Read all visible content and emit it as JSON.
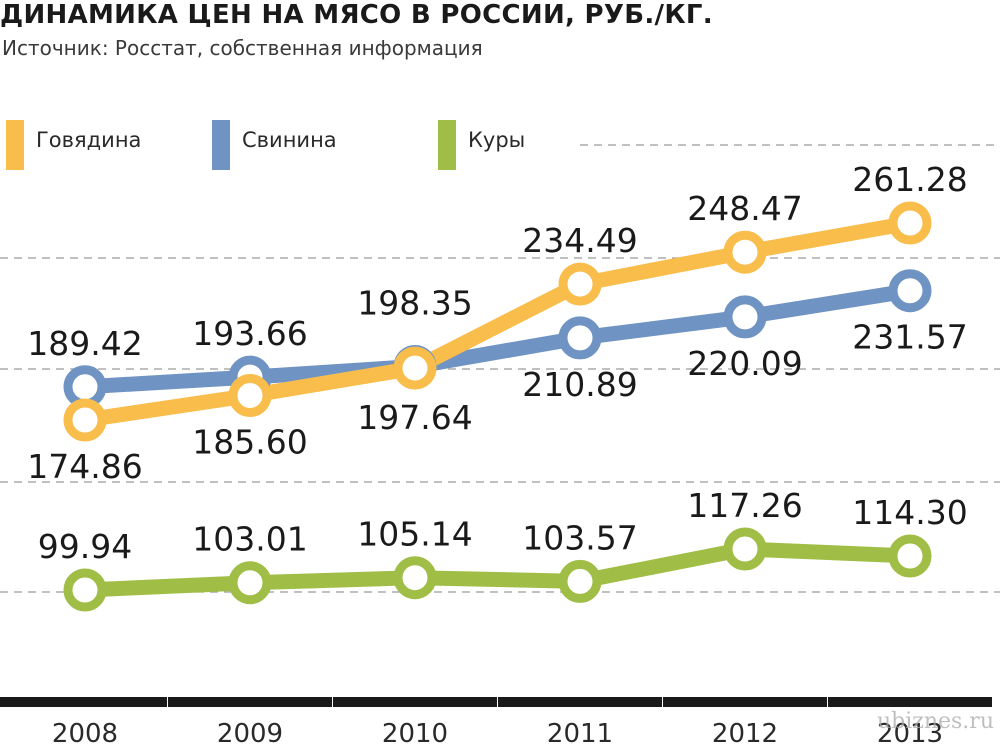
{
  "chart_data": {
    "type": "line",
    "title": "ДИНАМИКА ЦЕН НА МЯСО В РОССИИ, РУБ./КГ.",
    "subtitle": "Источник: Росстат, собственная информация",
    "x": [
      "2008",
      "2009",
      "2010",
      "2011",
      "2012",
      "2013"
    ],
    "series": [
      {
        "name": "Говядина",
        "color": "#f9bd4c",
        "values": [
          174.86,
          185.6,
          197.64,
          234.49,
          248.47,
          261.28
        ],
        "labels": [
          "174.86",
          "185.60",
          "197.64",
          "234.49",
          "248.47",
          "261.28"
        ]
      },
      {
        "name": "Свинина",
        "color": "#6f93c2",
        "values": [
          189.42,
          193.66,
          198.35,
          210.89,
          220.09,
          231.57
        ],
        "labels": [
          "189.42",
          "193.66",
          "198.35",
          "210.89",
          "220.09",
          "231.57"
        ]
      },
      {
        "name": "Куры",
        "color": "#a0be46",
        "values": [
          99.94,
          103.01,
          105.14,
          103.57,
          117.26,
          114.3
        ],
        "labels": [
          "99.94",
          "103.01",
          "105.14",
          "103.57",
          "117.26",
          "114.30"
        ]
      }
    ],
    "grid": "dashed horizontal",
    "legend_position": "top-left"
  },
  "watermark": "ubiznes.ru"
}
